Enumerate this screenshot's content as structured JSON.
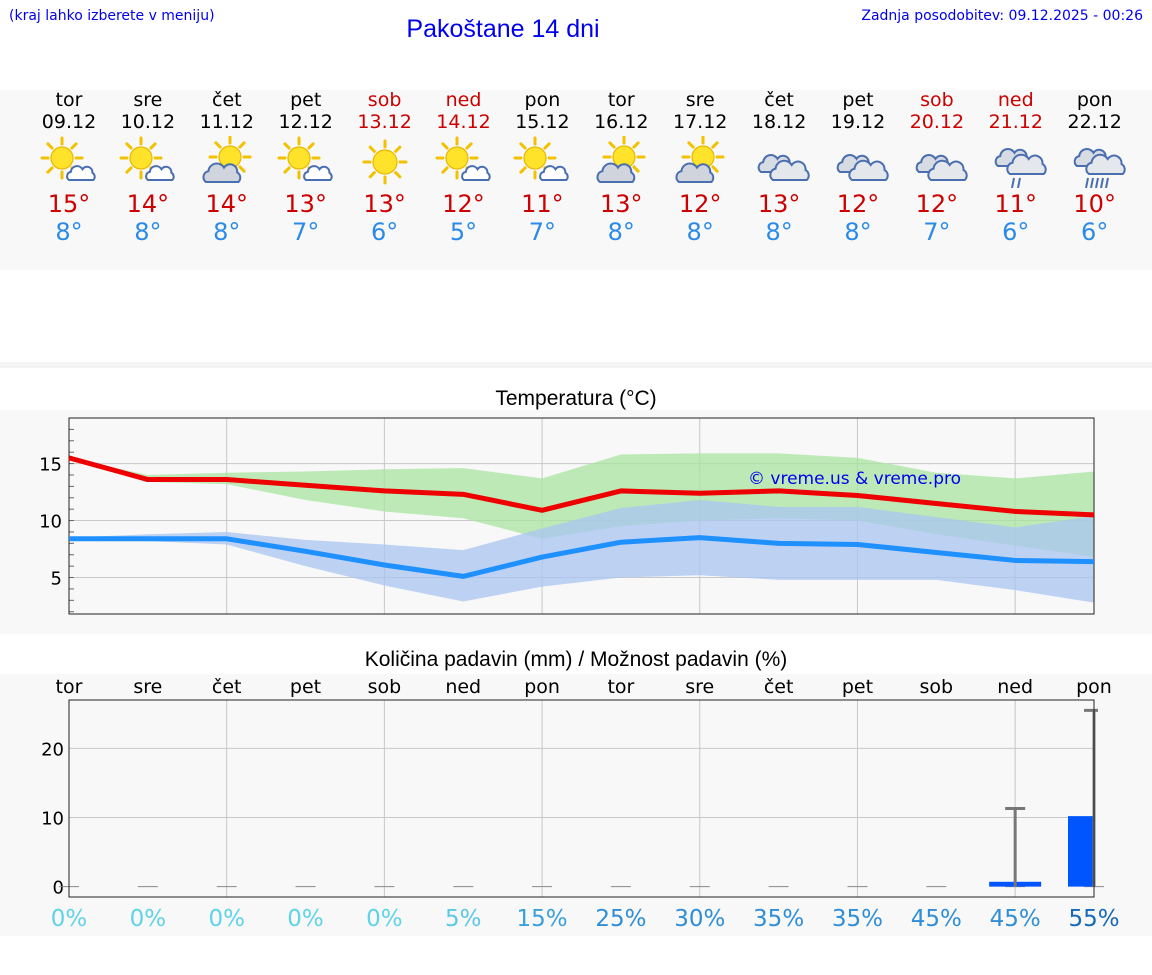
{
  "header": {
    "hint": "(kraj lahko izberete v meniju)",
    "title": "Pakoštane 14 dni",
    "updated": "Zadnja posodobitev: 09.12.2025 - 00:26"
  },
  "days": [
    {
      "name": "tor",
      "date": "09.12",
      "icon": "sun-cloud-icon",
      "tmax": "15°",
      "tmin": "8°",
      "weekend": false
    },
    {
      "name": "sre",
      "date": "10.12",
      "icon": "sun-cloud-icon",
      "tmax": "14°",
      "tmin": "8°",
      "weekend": false
    },
    {
      "name": "čet",
      "date": "11.12",
      "icon": "partly-cloudy-icon",
      "tmax": "14°",
      "tmin": "8°",
      "weekend": false
    },
    {
      "name": "pet",
      "date": "12.12",
      "icon": "sun-cloud-icon",
      "tmax": "13°",
      "tmin": "7°",
      "weekend": false
    },
    {
      "name": "sob",
      "date": "13.12",
      "icon": "sunny-icon",
      "tmax": "13°",
      "tmin": "6°",
      "weekend": true
    },
    {
      "name": "ned",
      "date": "14.12",
      "icon": "sun-cloud-icon",
      "tmax": "12°",
      "tmin": "5°",
      "weekend": true
    },
    {
      "name": "pon",
      "date": "15.12",
      "icon": "sun-cloud-icon",
      "tmax": "11°",
      "tmin": "7°",
      "weekend": false
    },
    {
      "name": "tor",
      "date": "16.12",
      "icon": "partly-cloudy-icon",
      "tmax": "13°",
      "tmin": "8°",
      "weekend": false
    },
    {
      "name": "sre",
      "date": "17.12",
      "icon": "partly-cloudy-icon",
      "tmax": "12°",
      "tmin": "8°",
      "weekend": false
    },
    {
      "name": "čet",
      "date": "18.12",
      "icon": "cloudy-icon",
      "tmax": "13°",
      "tmin": "8°",
      "weekend": false
    },
    {
      "name": "pet",
      "date": "19.12",
      "icon": "cloudy-icon",
      "tmax": "12°",
      "tmin": "8°",
      "weekend": false
    },
    {
      "name": "sob",
      "date": "20.12",
      "icon": "cloudy-icon",
      "tmax": "12°",
      "tmin": "7°",
      "weekend": true
    },
    {
      "name": "ned",
      "date": "21.12",
      "icon": "light-rain-icon",
      "tmax": "11°",
      "tmin": "6°",
      "weekend": true
    },
    {
      "name": "pon",
      "date": "22.12",
      "icon": "rain-icon",
      "tmax": "10°",
      "tmin": "6°",
      "weekend": false
    }
  ],
  "temp_chart_title": "Temperatura (°C)",
  "precip_chart_title": "Količina padavin (mm) / Možnost padavin (%)",
  "watermark": "© vreme.us & vreme.pro",
  "colors": {
    "max_line": "#ee0000",
    "min_line": "#1e90ff",
    "max_band": "#a8e4a0",
    "min_band": "#aac4f2",
    "bar": "#0055ff",
    "error_bar": "#777777",
    "title_blue": "#0000ee"
  },
  "chart_data": [
    {
      "type": "line",
      "title": "Temperatura (°C)",
      "x": [
        0,
        1,
        2,
        3,
        4,
        5,
        6,
        7,
        8,
        9,
        10,
        11,
        12,
        13
      ],
      "ylim": [
        1.8,
        19
      ],
      "yticks": [
        5,
        10,
        15
      ],
      "series": [
        {
          "name": "max",
          "values": [
            15.5,
            13.6,
            13.6,
            13.1,
            12.6,
            12.3,
            10.9,
            12.6,
            12.4,
            12.6,
            12.2,
            11.5,
            10.8,
            10.5
          ]
        },
        {
          "name": "min",
          "values": [
            8.4,
            8.4,
            8.4,
            7.3,
            6.1,
            5.1,
            6.8,
            8.1,
            8.5,
            8.0,
            7.9,
            7.2,
            6.5,
            6.4
          ]
        }
      ],
      "bands": [
        {
          "name": "max_range",
          "low": [
            15.5,
            13.4,
            13.2,
            11.8,
            10.8,
            10.2,
            8.4,
            9.5,
            10.0,
            10.2,
            10.0,
            8.8,
            7.8,
            6.8
          ],
          "high": [
            15.5,
            14.0,
            14.2,
            14.3,
            14.5,
            14.6,
            13.7,
            15.8,
            15.9,
            15.9,
            15.5,
            14.2,
            13.7,
            14.3
          ]
        },
        {
          "name": "min_range",
          "low": [
            8.4,
            8.2,
            7.9,
            6.0,
            4.3,
            2.9,
            4.2,
            5.0,
            5.2,
            4.8,
            4.8,
            4.8,
            3.9,
            2.8
          ],
          "high": [
            8.5,
            8.8,
            9.0,
            8.3,
            7.9,
            7.4,
            9.3,
            11.1,
            11.8,
            11.2,
            11.2,
            10.3,
            9.4,
            10.4
          ]
        }
      ]
    },
    {
      "type": "bar",
      "title": "Količina padavin (mm) / Možnost padavin (%)",
      "categories": [
        "tor",
        "sre",
        "čet",
        "pet",
        "sob",
        "ned",
        "pon",
        "tor",
        "sre",
        "čet",
        "pet",
        "sob",
        "ned",
        "pon"
      ],
      "values": [
        0,
        0,
        0,
        0,
        0,
        0,
        0,
        0,
        0,
        0,
        0,
        0,
        0.7,
        10.2
      ],
      "error_high": [
        0,
        0,
        0,
        0,
        0,
        0,
        0,
        0,
        0,
        0,
        0,
        0,
        11.3,
        25.5
      ],
      "probability": [
        "0%",
        "0%",
        "0%",
        "0%",
        "0%",
        "5%",
        "15%",
        "25%",
        "30%",
        "35%",
        "35%",
        "45%",
        "45%",
        "55%"
      ],
      "probability_values": [
        0,
        0,
        0,
        0,
        0,
        5,
        15,
        25,
        30,
        35,
        35,
        45,
        45,
        55
      ],
      "ylim": [
        -1.5,
        27
      ],
      "yticks": [
        0,
        10,
        20
      ]
    }
  ]
}
